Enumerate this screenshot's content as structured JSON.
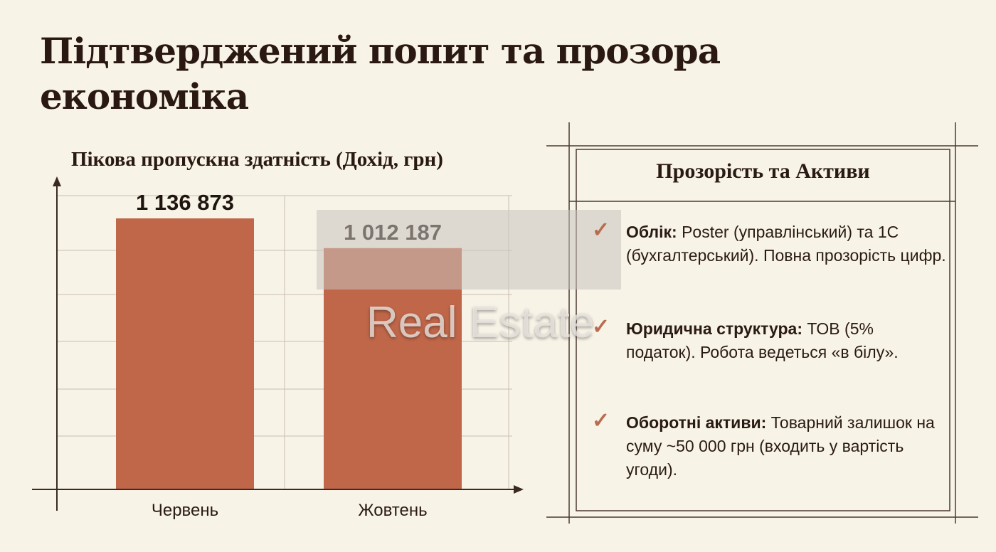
{
  "title": "Підтверджений попит та прозора економіка",
  "chart_data": {
    "type": "bar",
    "title": "Пікова пропускна здатність (Дохід, грн)",
    "categories": [
      "Червень",
      "Жовтень"
    ],
    "values": [
      1136873,
      1012187
    ],
    "value_labels": [
      "1 136 873",
      "1 012 187"
    ],
    "ylim": [
      0,
      1136873
    ],
    "grid": true,
    "bar_color": "#c0674a"
  },
  "panel": {
    "title": "Прозорість та Активи",
    "items": [
      {
        "bold": "Облік:",
        "text": " Poster (управлінський) та 1С (бухгалтерський). Повна прозорість цифр."
      },
      {
        "bold": "Юридична структура:",
        "text": " ТОВ (5% податок). Робота ведеться «в білу»."
      },
      {
        "bold": "Оборотні активи:",
        "text": " Товарний залишок на суму ~50 000 грн (входить у вартість угоди)."
      }
    ],
    "check_icon": "checkmark-icon",
    "check_color": "#b86c50"
  },
  "watermark": {
    "text": "Real Estate"
  }
}
